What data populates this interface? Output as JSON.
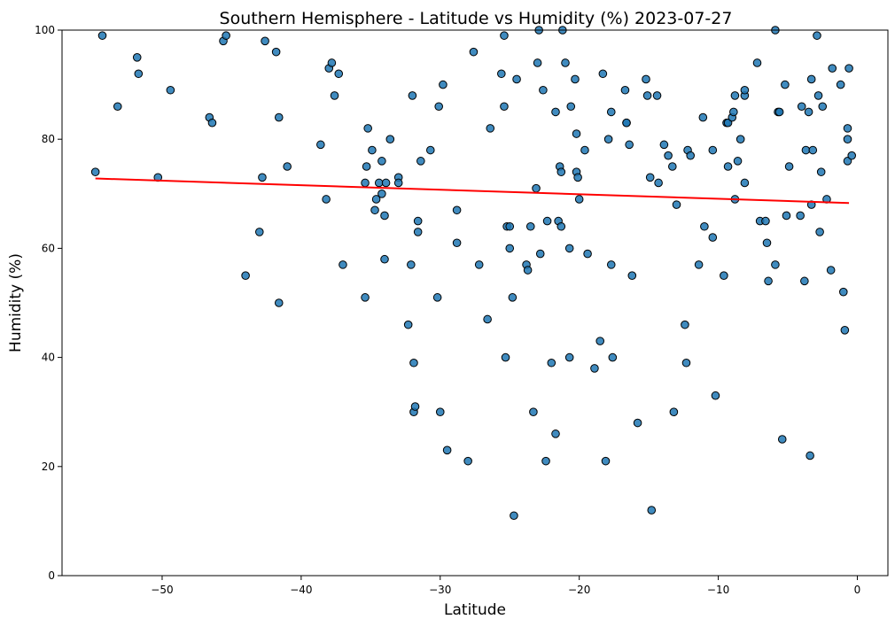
{
  "chart_data": {
    "type": "scatter",
    "title": "Southern Hemisphere - Latitude vs Humidity (%) 2023-07-27",
    "xlabel": "Latitude",
    "ylabel": "Humidity (%)",
    "xlim": [
      -57.2,
      2.2
    ],
    "ylim": [
      0,
      100
    ],
    "xticks": [
      -50,
      -40,
      -30,
      -20,
      -10,
      0
    ],
    "yticks": [
      0,
      20,
      40,
      60,
      80,
      100
    ],
    "grid": false,
    "point_color": "#1f77b4",
    "point_edge_color": "#000000",
    "regression_color": "#ff0000",
    "regression_line": {
      "x": [
        -54.8,
        -0.6
      ],
      "y": [
        72.8,
        68.3
      ]
    },
    "points": [
      [
        -54.8,
        74
      ],
      [
        -54.3,
        99
      ],
      [
        -53.2,
        86
      ],
      [
        -51.8,
        95
      ],
      [
        -51.7,
        92
      ],
      [
        -50.3,
        73
      ],
      [
        -49.4,
        89
      ],
      [
        -46.6,
        84
      ],
      [
        -46.4,
        83
      ],
      [
        -45.6,
        98
      ],
      [
        -45.4,
        99
      ],
      [
        -44.0,
        55
      ],
      [
        -43.0,
        63
      ],
      [
        -42.8,
        73
      ],
      [
        -42.6,
        98
      ],
      [
        -41.8,
        96
      ],
      [
        -41.6,
        84
      ],
      [
        -41.6,
        50
      ],
      [
        -41.0,
        75
      ],
      [
        -38.6,
        79
      ],
      [
        -38.2,
        69
      ],
      [
        -38.0,
        93
      ],
      [
        -37.8,
        94
      ],
      [
        -37.6,
        88
      ],
      [
        -37.3,
        92
      ],
      [
        -37.0,
        57
      ],
      [
        -35.4,
        72
      ],
      [
        -35.4,
        51
      ],
      [
        -35.3,
        75
      ],
      [
        -35.2,
        82
      ],
      [
        -34.9,
        78
      ],
      [
        -34.7,
        67
      ],
      [
        -34.6,
        69
      ],
      [
        -34.4,
        72
      ],
      [
        -34.2,
        76
      ],
      [
        -34.2,
        70
      ],
      [
        -34.0,
        58
      ],
      [
        -34.0,
        66
      ],
      [
        -33.9,
        72
      ],
      [
        -33.6,
        80
      ],
      [
        -33.0,
        73
      ],
      [
        -33.0,
        72
      ],
      [
        -32.3,
        46
      ],
      [
        -32.1,
        57
      ],
      [
        -32.0,
        88
      ],
      [
        -31.9,
        39
      ],
      [
        -31.9,
        30
      ],
      [
        -31.8,
        31
      ],
      [
        -31.6,
        65
      ],
      [
        -31.6,
        63
      ],
      [
        -31.4,
        76
      ],
      [
        -30.7,
        78
      ],
      [
        -30.2,
        51
      ],
      [
        -30.1,
        86
      ],
      [
        -30.0,
        30
      ],
      [
        -29.8,
        90
      ],
      [
        -29.5,
        23
      ],
      [
        -28.8,
        67
      ],
      [
        -28.8,
        61
      ],
      [
        -28.0,
        21
      ],
      [
        -27.6,
        96
      ],
      [
        -27.2,
        57
      ],
      [
        -26.6,
        47
      ],
      [
        -26.4,
        82
      ],
      [
        -25.6,
        92
      ],
      [
        -25.4,
        99
      ],
      [
        -25.4,
        86
      ],
      [
        -25.3,
        40
      ],
      [
        -25.2,
        64
      ],
      [
        -25.0,
        64
      ],
      [
        -25.0,
        60
      ],
      [
        -24.8,
        51
      ],
      [
        -24.7,
        11
      ],
      [
        -24.5,
        91
      ],
      [
        -23.8,
        57
      ],
      [
        -23.7,
        56
      ],
      [
        -23.5,
        64
      ],
      [
        -23.3,
        30
      ],
      [
        -23.1,
        71
      ],
      [
        -23.0,
        94
      ],
      [
        -22.9,
        100
      ],
      [
        -22.8,
        59
      ],
      [
        -22.6,
        89
      ],
      [
        -22.4,
        21
      ],
      [
        -22.3,
        65
      ],
      [
        -22.0,
        39
      ],
      [
        -21.7,
        26
      ],
      [
        -21.7,
        85
      ],
      [
        -21.5,
        65
      ],
      [
        -21.4,
        75
      ],
      [
        -21.3,
        74
      ],
      [
        -21.3,
        64
      ],
      [
        -21.2,
        100
      ],
      [
        -21.0,
        94
      ],
      [
        -20.7,
        40
      ],
      [
        -20.7,
        60
      ],
      [
        -20.6,
        86
      ],
      [
        -20.3,
        91
      ],
      [
        -20.2,
        74
      ],
      [
        -20.2,
        81
      ],
      [
        -20.1,
        73
      ],
      [
        -20.0,
        69
      ],
      [
        -19.6,
        78
      ],
      [
        -19.4,
        59
      ],
      [
        -18.9,
        38
      ],
      [
        -18.5,
        43
      ],
      [
        -18.3,
        92
      ],
      [
        -18.1,
        21
      ],
      [
        -17.9,
        80
      ],
      [
        -17.7,
        85
      ],
      [
        -17.7,
        57
      ],
      [
        -17.6,
        40
      ],
      [
        -16.7,
        89
      ],
      [
        -16.6,
        83
      ],
      [
        -16.6,
        83
      ],
      [
        -16.4,
        79
      ],
      [
        -16.2,
        55
      ],
      [
        -15.8,
        28
      ],
      [
        -15.2,
        91
      ],
      [
        -15.1,
        88
      ],
      [
        -14.9,
        73
      ],
      [
        -14.8,
        12
      ],
      [
        -14.4,
        88
      ],
      [
        -14.3,
        72
      ],
      [
        -13.9,
        79
      ],
      [
        -13.6,
        77
      ],
      [
        -13.3,
        75
      ],
      [
        -13.2,
        30
      ],
      [
        -13.0,
        68
      ],
      [
        -12.4,
        46
      ],
      [
        -12.3,
        39
      ],
      [
        -12.2,
        78
      ],
      [
        -12.0,
        77
      ],
      [
        -11.4,
        57
      ],
      [
        -11.1,
        84
      ],
      [
        -11.0,
        64
      ],
      [
        -10.4,
        78
      ],
      [
        -10.4,
        62
      ],
      [
        -10.2,
        33
      ],
      [
        -9.6,
        55
      ],
      [
        -9.4,
        83
      ],
      [
        -9.3,
        75
      ],
      [
        -9.3,
        83
      ],
      [
        -9.0,
        84
      ],
      [
        -8.9,
        85
      ],
      [
        -8.8,
        88
      ],
      [
        -8.8,
        69
      ],
      [
        -8.6,
        76
      ],
      [
        -8.4,
        80
      ],
      [
        -8.1,
        88
      ],
      [
        -8.1,
        89
      ],
      [
        -8.1,
        72
      ],
      [
        -7.2,
        94
      ],
      [
        -7.0,
        65
      ],
      [
        -6.6,
        65
      ],
      [
        -6.5,
        61
      ],
      [
        -6.4,
        54
      ],
      [
        -5.9,
        57
      ],
      [
        -5.9,
        100
      ],
      [
        -5.7,
        85
      ],
      [
        -5.6,
        85
      ],
      [
        -5.4,
        25
      ],
      [
        -5.2,
        90
      ],
      [
        -5.1,
        66
      ],
      [
        -4.9,
        75
      ],
      [
        -4.1,
        66
      ],
      [
        -4.0,
        86
      ],
      [
        -3.8,
        54
      ],
      [
        -3.7,
        78
      ],
      [
        -3.5,
        85
      ],
      [
        -3.4,
        22
      ],
      [
        -3.3,
        91
      ],
      [
        -3.3,
        68
      ],
      [
        -3.2,
        78
      ],
      [
        -2.9,
        99
      ],
      [
        -2.8,
        88
      ],
      [
        -2.7,
        63
      ],
      [
        -2.6,
        74
      ],
      [
        -2.5,
        86
      ],
      [
        -2.2,
        69
      ],
      [
        -1.9,
        56
      ],
      [
        -1.8,
        93
      ],
      [
        -1.2,
        90
      ],
      [
        -1.0,
        52
      ],
      [
        -0.9,
        45
      ],
      [
        -0.7,
        82
      ],
      [
        -0.7,
        80
      ],
      [
        -0.7,
        76
      ],
      [
        -0.6,
        93
      ],
      [
        -0.4,
        77
      ]
    ]
  }
}
